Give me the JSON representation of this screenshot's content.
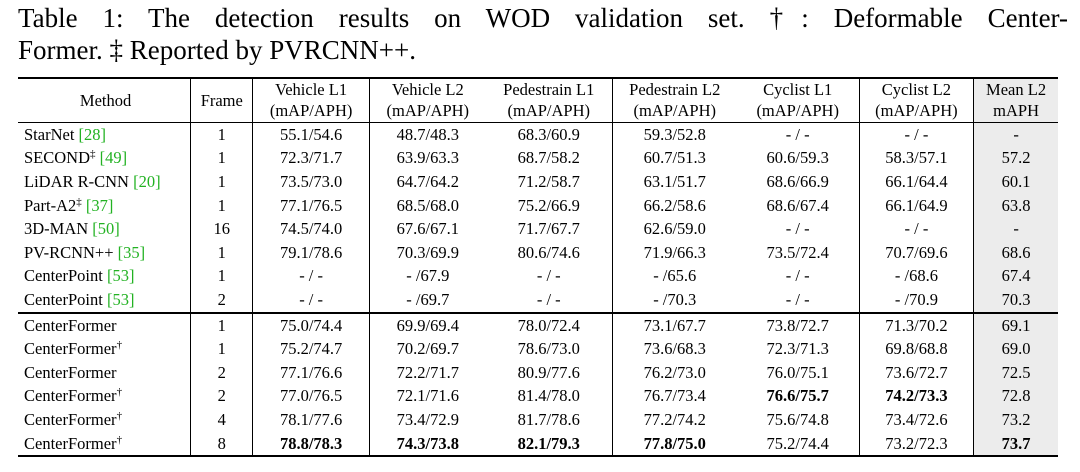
{
  "caption": {
    "line1": "Table 1: The detection results on WOD validation set. †: Deformable Center-",
    "line2": "Former. ‡ Reported by PVRCNN++."
  },
  "header": {
    "method": "Method",
    "frame": "Frame",
    "cols": [
      {
        "top": "Vehicle L1",
        "bottom": "(mAP/APH)"
      },
      {
        "top": "Vehicle L2",
        "bottom": "(mAP/APH)"
      },
      {
        "top": "Pedestrain L1",
        "bottom": "(mAP/APH)"
      },
      {
        "top": "Pedestrain L2",
        "bottom": "(mAP/APH)"
      },
      {
        "top": "Cyclist L1",
        "bottom": "(mAP/APH)"
      },
      {
        "top": "Cyclist L2",
        "bottom": "(mAP/APH)"
      },
      {
        "top": "Mean L2",
        "bottom": "mAPH"
      }
    ]
  },
  "group1": [
    {
      "name": "StarNet ",
      "sup": "",
      "cite": "[28]",
      "frame": "1",
      "vals": [
        "55.1/54.6",
        "48.7/48.3",
        "68.3/60.9",
        "59.3/52.8",
        "- / -",
        "- / -",
        "-"
      ]
    },
    {
      "name": "SECOND",
      "sup": "‡",
      "cite": " [49]",
      "frame": "1",
      "vals": [
        "72.3/71.7",
        "63.9/63.3",
        "68.7/58.2",
        "60.7/51.3",
        "60.6/59.3",
        "58.3/57.1",
        "57.2"
      ]
    },
    {
      "name": "LiDAR R-CNN ",
      "sup": "",
      "cite": "[20]",
      "frame": "1",
      "vals": [
        "73.5/73.0",
        "64.7/64.2",
        "71.2/58.7",
        "63.1/51.7",
        "68.6/66.9",
        "66.1/64.4",
        "60.1"
      ]
    },
    {
      "name": "Part-A2",
      "sup": "‡",
      "cite": " [37]",
      "frame": "1",
      "vals": [
        "77.1/76.5",
        "68.5/68.0",
        "75.2/66.9",
        "66.2/58.6",
        "68.6/67.4",
        "66.1/64.9",
        "63.8"
      ]
    },
    {
      "name": "3D-MAN ",
      "sup": "",
      "cite": "[50]",
      "frame": "16",
      "vals": [
        "74.5/74.0",
        "67.6/67.1",
        "71.7/67.7",
        "62.6/59.0",
        "- / -",
        "- / -",
        "-"
      ]
    },
    {
      "name": "PV-RCNN++ ",
      "sup": "",
      "cite": "[35]",
      "frame": "1",
      "vals": [
        "79.1/78.6",
        "70.3/69.9",
        "80.6/74.6",
        "71.9/66.3",
        "73.5/72.4",
        "70.7/69.6",
        "68.6"
      ]
    },
    {
      "name": "CenterPoint ",
      "sup": "",
      "cite": "[53]",
      "frame": "1",
      "vals": [
        "- / -",
        "- /67.9",
        "- / -",
        "- /65.6",
        "- / -",
        "- /68.6",
        "67.4"
      ]
    },
    {
      "name": "CenterPoint ",
      "sup": "",
      "cite": "[53]",
      "frame": "2",
      "vals": [
        "- / -",
        "- /69.7",
        "- / -",
        "- /70.3",
        "- / -",
        "- /70.9",
        "70.3"
      ]
    }
  ],
  "group2": [
    {
      "name": "CenterFormer",
      "sup": "",
      "frame": "1",
      "vals": [
        "75.0/74.4",
        "69.9/69.4",
        "78.0/72.4",
        "73.1/67.7",
        "73.8/72.7",
        "71.3/70.2",
        "69.1"
      ],
      "bold": []
    },
    {
      "name": "CenterFormer",
      "sup": "†",
      "frame": "1",
      "vals": [
        "75.2/74.7",
        "70.2/69.7",
        "78.6/73.0",
        "73.6/68.3",
        "72.3/71.3",
        "69.8/68.8",
        "69.0"
      ],
      "bold": []
    },
    {
      "name": "CenterFormer",
      "sup": "",
      "frame": "2",
      "vals": [
        "77.1/76.6",
        "72.2/71.7",
        "80.9/77.6",
        "76.2/73.0",
        "76.0/75.1",
        "73.6/72.7",
        "72.5"
      ],
      "bold": []
    },
    {
      "name": "CenterFormer",
      "sup": "†",
      "frame": "2",
      "vals": [
        "77.0/76.5",
        "72.1/71.6",
        "81.4/78.0",
        "76.7/73.4",
        "76.6/75.7",
        "74.2/73.3",
        "72.8"
      ],
      "bold": [
        4,
        5
      ]
    },
    {
      "name": "CenterFormer",
      "sup": "†",
      "frame": "4",
      "vals": [
        "78.1/77.6",
        "73.4/72.9",
        "81.7/78.6",
        "77.2/74.2",
        "75.6/74.8",
        "73.4/72.6",
        "73.2"
      ],
      "bold": []
    },
    {
      "name": "CenterFormer",
      "sup": "†",
      "frame": "8",
      "vals": [
        "78.8/78.3",
        "74.3/73.8",
        "82.1/79.3",
        "77.8/75.0",
        "75.2/74.4",
        "73.2/72.3",
        "73.7"
      ],
      "bold": [
        0,
        1,
        2,
        3,
        6
      ]
    }
  ]
}
